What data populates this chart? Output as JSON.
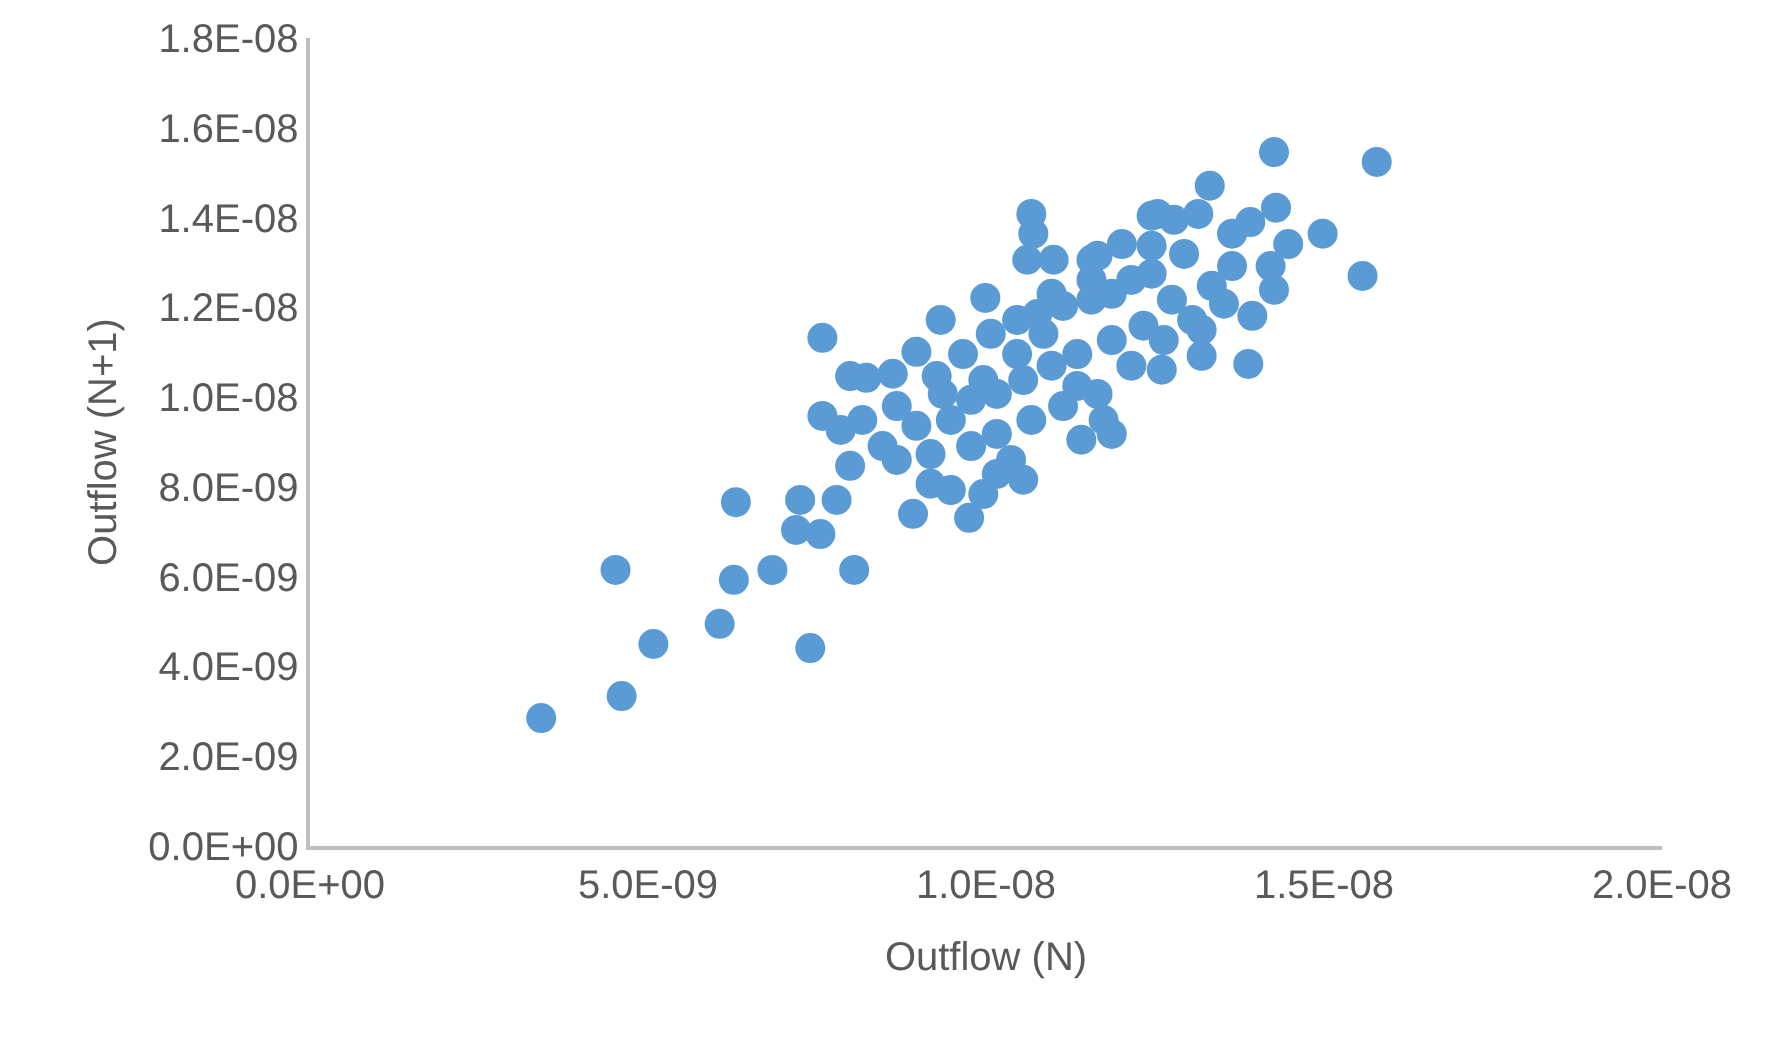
{
  "chart_data": {
    "type": "scatter",
    "xlabel": "Outflow (N)",
    "ylabel": "Outflow (N+1)",
    "xlim": [
      0,
      2e-08
    ],
    "ylim": [
      0,
      1.8e-08
    ],
    "xticks": [
      {
        "value": 0,
        "label": "0.0E+00"
      },
      {
        "value": 5e-09,
        "label": "5.0E-09"
      },
      {
        "value": 1e-08,
        "label": "1.0E-08"
      },
      {
        "value": 1.5e-08,
        "label": "1.5E-08"
      },
      {
        "value": 2e-08,
        "label": "2.0E-08"
      }
    ],
    "yticks": [
      {
        "value": 0,
        "label": "0.0E+00"
      },
      {
        "value": 2e-09,
        "label": "2.0E-09"
      },
      {
        "value": 4e-09,
        "label": "4.0E-09"
      },
      {
        "value": 6e-09,
        "label": "6.0E-09"
      },
      {
        "value": 8e-09,
        "label": "8.0E-09"
      },
      {
        "value": 1e-08,
        "label": "1.0E-08"
      },
      {
        "value": 1.2e-08,
        "label": "1.2E-08"
      },
      {
        "value": 1.4e-08,
        "label": "1.4E-08"
      },
      {
        "value": 1.6e-08,
        "label": "1.6E-08"
      },
      {
        "value": 1.8e-08,
        "label": "1.8E-08"
      }
    ],
    "grid": false,
    "marker": "circle",
    "series": [
      {
        "color": "#5b9bd5",
        "x": [
          3.42e-09,
          4.61e-09,
          4.52e-09,
          5.08e-09,
          6.06e-09,
          6.3e-09,
          6.27e-09,
          6.84e-09,
          7.19e-09,
          7.4e-09,
          7.58e-09,
          8.05e-09,
          7.55e-09,
          7.25e-09,
          8.92e-09,
          9.75e-09,
          7.79e-09,
          7.99e-09,
          7.58e-09,
          7.85e-09,
          7.99e-09,
          8.23e-09,
          8.62e-09,
          8.97e-09,
          9.33e-09,
          9.99e-09,
          1.061e-08,
          1.067e-08,
          1.07e-08,
          1.1e-08,
          1.156e-08,
          1.201e-08,
          1.245e-08,
          1.278e-08,
          1.314e-08,
          1.331e-08,
          1.426e-08,
          1.578e-08,
          1.429e-08,
          1.447e-08,
          1.498e-08,
          1.557e-08,
          1.391e-08,
          1.364e-08,
          1.421e-08,
          1.426e-08,
          1.394e-08,
          1.352e-08,
          1.388e-08,
          1.319e-08,
          1.319e-08,
          1.26e-08,
          1.186e-08,
          1.141e-08,
          1.055e-08,
          1.016e-08,
          9.96e-09,
          9.48e-09,
          9.18e-09,
          8.68e-09,
          8.47e-09,
          8.17e-09,
          8.68e-09,
          8.97e-09,
          9.27e-09,
          9.66e-09,
          1.007e-08,
          1.046e-08,
          1.076e-08,
          1.114e-08,
          1.156e-08,
          1.186e-08,
          1.215e-08,
          1.245e-08,
          1.275e-08,
          1.233e-08,
          1.186e-08,
          1.135e-08,
          1.097e-08,
          1.055e-08,
          1.016e-08,
          9.78e-09,
          9.48e-09,
          9.78e-09,
          1.016e-08,
          1.067e-08,
          1.114e-08,
          1.165e-08,
          1.215e-08,
          1.263e-08,
          1.305e-08,
          1.334e-08,
          1.364e-08,
          1.293e-08,
          1.245e-08,
          1.156e-08,
          1.097e-08,
          1.046e-08,
          9.96e-09,
          9.36e-09,
          9.18e-09,
          1.037e-08,
          1.174e-08,
          1.135e-08,
          1.085e-08,
          1.165e-08,
          1.254e-08
        ],
        "values": [
          2.85e-09,
          3.34e-09,
          6.15e-09,
          4.5e-09,
          4.95e-09,
          7.66e-09,
          5.93e-09,
          6.15e-09,
          7.04e-09,
          4.41e-09,
          1.132e-08,
          6.15e-09,
          6.95e-09,
          7.71e-09,
          7.4e-09,
          7.31e-09,
          7.71e-09,
          8.47e-09,
          9.58e-09,
          9.27e-09,
          1.047e-08,
          1.043e-08,
          1.052e-08,
          1.101e-08,
          1.172e-08,
          1.221e-08,
          1.306e-08,
          1.408e-08,
          1.364e-08,
          1.306e-08,
          1.306e-08,
          1.341e-08,
          1.404e-08,
          1.395e-08,
          1.408e-08,
          1.471e-08,
          1.546e-08,
          1.524e-08,
          1.422e-08,
          1.341e-08,
          1.364e-08,
          1.27e-08,
          1.39e-08,
          1.364e-08,
          1.292e-08,
          1.239e-08,
          1.181e-08,
          1.208e-08,
          1.074e-08,
          1.15e-08,
          1.092e-08,
          1.061e-08,
          9.18e-09,
          9.05e-09,
          8.16e-09,
          8.29e-09,
          7.84e-09,
          7.93e-09,
          8.07e-09,
          8.6e-09,
          8.91e-09,
          9.49e-09,
          9.8e-09,
          9.36e-09,
          1.047e-08,
          1.096e-08,
          1.141e-08,
          1.172e-08,
          1.185e-08,
          1.203e-08,
          1.217e-08,
          1.23e-08,
          1.261e-08,
          1.275e-08,
          1.217e-08,
          1.159e-08,
          1.127e-08,
          1.096e-08,
          1.07e-08,
          1.038e-08,
          1.007e-08,
          9.94e-09,
          9.49e-09,
          8.91e-09,
          9.18e-09,
          9.49e-09,
          9.8e-09,
          1.007e-08,
          1.07e-08,
          1.127e-08,
          1.172e-08,
          1.248e-08,
          1.292e-08,
          1.319e-08,
          1.337e-08,
          1.261e-08,
          1.23e-08,
          1.096e-08,
          1.038e-08,
          1.007e-08,
          8.73e-09,
          8.6e-09,
          9.49e-09,
          1.025e-08,
          1.141e-08,
          1.315e-08,
          1.408e-08
        ]
      }
    ]
  }
}
